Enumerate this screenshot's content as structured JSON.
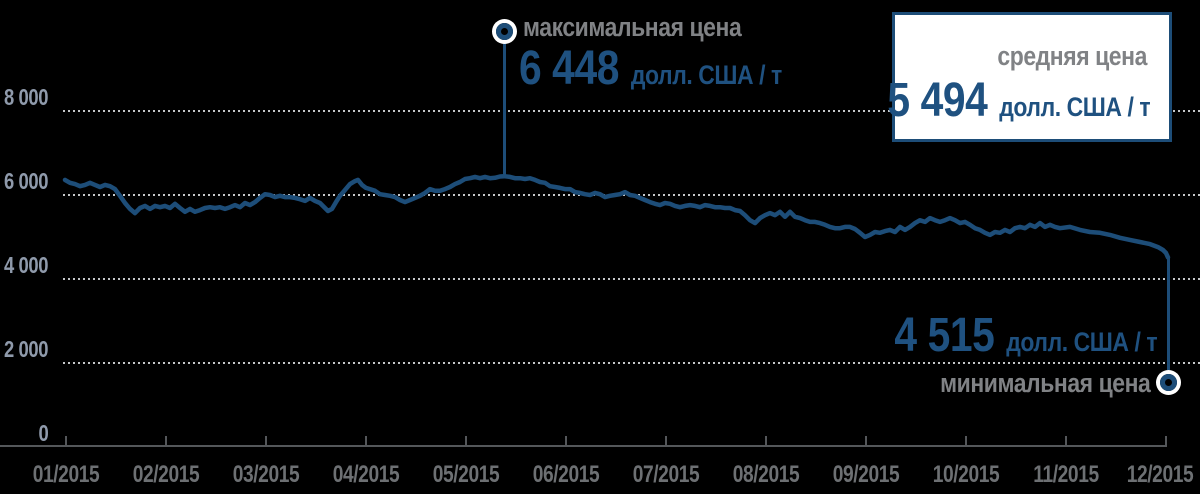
{
  "chart_data": {
    "type": "line",
    "title": "",
    "x_axis": {
      "tick_labels": [
        "01/2015",
        "02/2015",
        "03/2015",
        "04/2015",
        "05/2015",
        "06/2015",
        "07/2015",
        "08/2015",
        "09/2015",
        "10/2015",
        "11/2015",
        "12/2015"
      ]
    },
    "y_axis": {
      "tick_labels": [
        "8 000",
        "6 000",
        "4 000",
        "2 000",
        "0"
      ],
      "tick_values": [
        8000,
        6000,
        4000,
        2000,
        0
      ],
      "grid_values": [
        8000,
        6000,
        4000,
        2000
      ],
      "range": [
        0,
        8800
      ],
      "grid": "dotted"
    },
    "legend": "none",
    "series": [
      {
        "points": [
          [
            0.99,
            6360
          ],
          [
            1.04,
            6290
          ],
          [
            1.09,
            6260
          ],
          [
            1.14,
            6210
          ],
          [
            1.19,
            6240
          ],
          [
            1.24,
            6290
          ],
          [
            1.29,
            6240
          ],
          [
            1.34,
            6190
          ],
          [
            1.39,
            6240
          ],
          [
            1.44,
            6210
          ],
          [
            1.49,
            6140
          ],
          [
            1.54,
            5980
          ],
          [
            1.59,
            5810
          ],
          [
            1.64,
            5670
          ],
          [
            1.69,
            5570
          ],
          [
            1.74,
            5690
          ],
          [
            1.79,
            5740
          ],
          [
            1.84,
            5670
          ],
          [
            1.89,
            5740
          ],
          [
            1.94,
            5710
          ],
          [
            1.99,
            5740
          ],
          [
            2.04,
            5690
          ],
          [
            2.09,
            5790
          ],
          [
            2.14,
            5690
          ],
          [
            2.19,
            5600
          ],
          [
            2.24,
            5670
          ],
          [
            2.29,
            5600
          ],
          [
            2.34,
            5640
          ],
          [
            2.39,
            5690
          ],
          [
            2.44,
            5710
          ],
          [
            2.49,
            5690
          ],
          [
            2.54,
            5710
          ],
          [
            2.59,
            5670
          ],
          [
            2.64,
            5710
          ],
          [
            2.69,
            5760
          ],
          [
            2.74,
            5710
          ],
          [
            2.79,
            5810
          ],
          [
            2.84,
            5760
          ],
          [
            2.89,
            5830
          ],
          [
            2.94,
            5930
          ],
          [
            2.99,
            6020
          ],
          [
            3.04,
            6000
          ],
          [
            3.09,
            5950
          ],
          [
            3.14,
            5980
          ],
          [
            3.19,
            5950
          ],
          [
            3.24,
            5950
          ],
          [
            3.29,
            5930
          ],
          [
            3.34,
            5900
          ],
          [
            3.39,
            5860
          ],
          [
            3.44,
            5930
          ],
          [
            3.49,
            5860
          ],
          [
            3.54,
            5810
          ],
          [
            3.59,
            5690
          ],
          [
            3.62,
            5620
          ],
          [
            3.66,
            5670
          ],
          [
            3.7,
            5830
          ],
          [
            3.74,
            5980
          ],
          [
            3.79,
            6120
          ],
          [
            3.84,
            6260
          ],
          [
            3.89,
            6330
          ],
          [
            3.92,
            6360
          ],
          [
            3.96,
            6240
          ],
          [
            4.0,
            6170
          ],
          [
            4.04,
            6140
          ],
          [
            4.09,
            6100
          ],
          [
            4.14,
            6020
          ],
          [
            4.19,
            6000
          ],
          [
            4.24,
            5980
          ],
          [
            4.29,
            5950
          ],
          [
            4.34,
            5880
          ],
          [
            4.39,
            5830
          ],
          [
            4.44,
            5880
          ],
          [
            4.49,
            5930
          ],
          [
            4.54,
            5980
          ],
          [
            4.59,
            6050
          ],
          [
            4.64,
            6140
          ],
          [
            4.69,
            6100
          ],
          [
            4.74,
            6100
          ],
          [
            4.79,
            6140
          ],
          [
            4.84,
            6190
          ],
          [
            4.89,
            6260
          ],
          [
            4.94,
            6310
          ],
          [
            4.99,
            6380
          ],
          [
            5.04,
            6400
          ],
          [
            5.09,
            6430
          ],
          [
            5.14,
            6400
          ],
          [
            5.19,
            6430
          ],
          [
            5.24,
            6400
          ],
          [
            5.29,
            6410
          ],
          [
            5.34,
            6440
          ],
          [
            5.38,
            6448
          ],
          [
            5.44,
            6430
          ],
          [
            5.49,
            6400
          ],
          [
            5.54,
            6400
          ],
          [
            5.59,
            6380
          ],
          [
            5.64,
            6400
          ],
          [
            5.69,
            6360
          ],
          [
            5.74,
            6310
          ],
          [
            5.79,
            6290
          ],
          [
            5.84,
            6210
          ],
          [
            5.89,
            6190
          ],
          [
            5.94,
            6170
          ],
          [
            5.99,
            6140
          ],
          [
            6.04,
            6140
          ],
          [
            6.09,
            6070
          ],
          [
            6.14,
            6050
          ],
          [
            6.19,
            6020
          ],
          [
            6.24,
            6000
          ],
          [
            6.29,
            6050
          ],
          [
            6.34,
            6020
          ],
          [
            6.39,
            5950
          ],
          [
            6.44,
            5980
          ],
          [
            6.49,
            6000
          ],
          [
            6.54,
            6020
          ],
          [
            6.59,
            6070
          ],
          [
            6.64,
            6000
          ],
          [
            6.69,
            5980
          ],
          [
            6.74,
            5930
          ],
          [
            6.79,
            5880
          ],
          [
            6.84,
            5830
          ],
          [
            6.89,
            5790
          ],
          [
            6.94,
            5760
          ],
          [
            6.99,
            5810
          ],
          [
            7.04,
            5790
          ],
          [
            7.09,
            5740
          ],
          [
            7.14,
            5710
          ],
          [
            7.19,
            5740
          ],
          [
            7.24,
            5760
          ],
          [
            7.29,
            5740
          ],
          [
            7.34,
            5710
          ],
          [
            7.39,
            5760
          ],
          [
            7.44,
            5740
          ],
          [
            7.49,
            5710
          ],
          [
            7.54,
            5710
          ],
          [
            7.59,
            5690
          ],
          [
            7.64,
            5690
          ],
          [
            7.69,
            5640
          ],
          [
            7.74,
            5620
          ],
          [
            7.79,
            5520
          ],
          [
            7.84,
            5400
          ],
          [
            7.89,
            5330
          ],
          [
            7.94,
            5450
          ],
          [
            7.99,
            5520
          ],
          [
            8.04,
            5570
          ],
          [
            8.09,
            5520
          ],
          [
            8.14,
            5600
          ],
          [
            8.19,
            5480
          ],
          [
            8.24,
            5600
          ],
          [
            8.29,
            5480
          ],
          [
            8.34,
            5450
          ],
          [
            8.39,
            5400
          ],
          [
            8.44,
            5360
          ],
          [
            8.49,
            5360
          ],
          [
            8.54,
            5330
          ],
          [
            8.59,
            5290
          ],
          [
            8.64,
            5240
          ],
          [
            8.69,
            5210
          ],
          [
            8.74,
            5210
          ],
          [
            8.79,
            5240
          ],
          [
            8.84,
            5240
          ],
          [
            8.89,
            5190
          ],
          [
            8.94,
            5100
          ],
          [
            8.99,
            5000
          ],
          [
            9.04,
            5050
          ],
          [
            9.09,
            5120
          ],
          [
            9.14,
            5100
          ],
          [
            9.19,
            5140
          ],
          [
            9.24,
            5170
          ],
          [
            9.29,
            5120
          ],
          [
            9.34,
            5240
          ],
          [
            9.39,
            5170
          ],
          [
            9.44,
            5240
          ],
          [
            9.49,
            5330
          ],
          [
            9.54,
            5400
          ],
          [
            9.59,
            5360
          ],
          [
            9.64,
            5450
          ],
          [
            9.69,
            5400
          ],
          [
            9.74,
            5360
          ],
          [
            9.79,
            5400
          ],
          [
            9.84,
            5450
          ],
          [
            9.89,
            5400
          ],
          [
            9.94,
            5330
          ],
          [
            9.99,
            5360
          ],
          [
            10.04,
            5290
          ],
          [
            10.09,
            5210
          ],
          [
            10.14,
            5170
          ],
          [
            10.19,
            5100
          ],
          [
            10.24,
            5050
          ],
          [
            10.29,
            5120
          ],
          [
            10.34,
            5100
          ],
          [
            10.39,
            5170
          ],
          [
            10.44,
            5120
          ],
          [
            10.49,
            5210
          ],
          [
            10.54,
            5240
          ],
          [
            10.59,
            5210
          ],
          [
            10.64,
            5290
          ],
          [
            10.69,
            5240
          ],
          [
            10.74,
            5330
          ],
          [
            10.79,
            5240
          ],
          [
            10.84,
            5290
          ],
          [
            10.89,
            5240
          ],
          [
            10.94,
            5210
          ],
          [
            11.04,
            5240
          ],
          [
            11.14,
            5170
          ],
          [
            11.24,
            5120
          ],
          [
            11.34,
            5100
          ],
          [
            11.44,
            5050
          ],
          [
            11.54,
            4980
          ],
          [
            11.64,
            4930
          ],
          [
            11.74,
            4880
          ],
          [
            11.84,
            4830
          ],
          [
            11.92,
            4760
          ],
          [
            11.97,
            4690
          ],
          [
            12.0,
            4620
          ],
          [
            12.02,
            4515
          ]
        ]
      }
    ],
    "annotations": {
      "max": {
        "label": "максимальная цена",
        "value": "6 448",
        "unit": "долл. США / т",
        "price": 6448,
        "month": 5.38
      },
      "avg": {
        "label": "средняя цена",
        "value": "5 494",
        "unit": "долл. США / т",
        "price": 5494
      },
      "min": {
        "label": "минимальная цена",
        "value": "4 515",
        "unit": "долл. США / т",
        "price": 4515,
        "month": 12.02
      }
    },
    "colors": {
      "line": "#1d4d78",
      "value_text": "#1f5180",
      "callout_text": "#808285",
      "y_labels": "#8f9aab",
      "x_labels": "#6d7073",
      "grid_dots": "#c5c7c9",
      "axis": "#54575a",
      "box_bg": "#ffffff",
      "background": "#000000"
    }
  }
}
